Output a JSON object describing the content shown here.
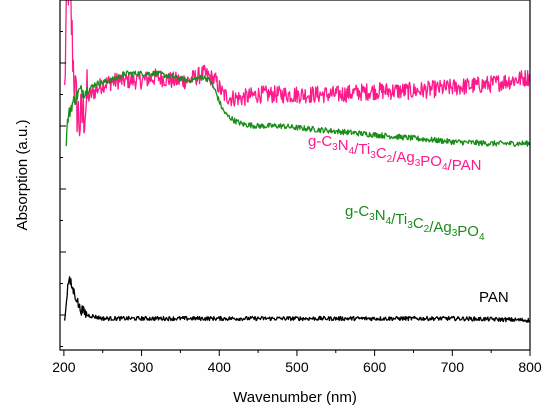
{
  "chart_data": {
    "type": "line",
    "title": "",
    "xlabel": "Wavenumber (nm)",
    "ylabel": "Absorption (a.u.)",
    "xlim": [
      195,
      800
    ],
    "ylim": [
      0,
      1
    ],
    "x_ticks": [
      200,
      300,
      400,
      500,
      600,
      700,
      800
    ],
    "y_tick_labels": "none",
    "grid": false,
    "legend": "inline labels next to curves",
    "series": [
      {
        "name": "g-C3N4/Ti3C2/Ag3PO4/PAN",
        "label_parts": [
          {
            "t": "g-C"
          },
          {
            "t": "3",
            "sub": true
          },
          {
            "t": "N"
          },
          {
            "t": "4",
            "sub": true
          },
          {
            "t": "/Ti"
          },
          {
            "t": "3",
            "sub": true
          },
          {
            "t": "C"
          },
          {
            "t": "2",
            "sub": true
          },
          {
            "t": "/Ag"
          },
          {
            "t": "3",
            "sub": true
          },
          {
            "t": "PO"
          },
          {
            "t": "4",
            "sub": true
          },
          {
            "t": "/PAN"
          }
        ],
        "color": "#ff1a8c",
        "noise": 0.025,
        "points": [
          [
            201,
            0.73
          ],
          [
            203,
            0.95
          ],
          [
            206,
            1.05
          ],
          [
            209,
            0.97
          ],
          [
            212,
            0.82
          ],
          [
            215,
            0.72
          ],
          [
            220,
            0.65
          ],
          [
            225,
            0.67
          ],
          [
            230,
            0.72
          ],
          [
            240,
            0.74
          ],
          [
            250,
            0.76
          ],
          [
            270,
            0.77
          ],
          [
            300,
            0.77
          ],
          [
            320,
            0.78
          ],
          [
            340,
            0.77
          ],
          [
            360,
            0.77
          ],
          [
            380,
            0.79
          ],
          [
            395,
            0.77
          ],
          [
            405,
            0.73
          ],
          [
            415,
            0.72
          ],
          [
            430,
            0.72
          ],
          [
            450,
            0.73
          ],
          [
            500,
            0.73
          ],
          [
            550,
            0.73
          ],
          [
            600,
            0.74
          ],
          [
            650,
            0.74
          ],
          [
            700,
            0.75
          ],
          [
            750,
            0.76
          ],
          [
            800,
            0.78
          ]
        ]
      },
      {
        "name": "g-C3N4/Ti3C2/Ag3PO4",
        "label_parts": [
          {
            "t": "g-C"
          },
          {
            "t": "3",
            "sub": true
          },
          {
            "t": "N"
          },
          {
            "t": "4",
            "sub": true
          },
          {
            "t": "/Ti"
          },
          {
            "t": "3",
            "sub": true
          },
          {
            "t": "C"
          },
          {
            "t": "2",
            "sub": true
          },
          {
            "t": "/Ag"
          },
          {
            "t": "3",
            "sub": true
          },
          {
            "t": "PO"
          },
          {
            "t": "4",
            "sub": true
          }
        ],
        "color": "#1a8c1a",
        "noise": 0.008,
        "points": [
          [
            203,
            0.6
          ],
          [
            205,
            0.66
          ],
          [
            210,
            0.7
          ],
          [
            215,
            0.72
          ],
          [
            220,
            0.74
          ],
          [
            230,
            0.74
          ],
          [
            240,
            0.76
          ],
          [
            260,
            0.77
          ],
          [
            280,
            0.79
          ],
          [
            300,
            0.79
          ],
          [
            320,
            0.79
          ],
          [
            340,
            0.78
          ],
          [
            360,
            0.77
          ],
          [
            380,
            0.78
          ],
          [
            388,
            0.77
          ],
          [
            395,
            0.74
          ],
          [
            400,
            0.71
          ],
          [
            405,
            0.685
          ],
          [
            410,
            0.67
          ],
          [
            420,
            0.655
          ],
          [
            430,
            0.645
          ],
          [
            450,
            0.64
          ],
          [
            480,
            0.64
          ],
          [
            500,
            0.635
          ],
          [
            550,
            0.625
          ],
          [
            600,
            0.615
          ],
          [
            650,
            0.605
          ],
          [
            700,
            0.595
          ],
          [
            750,
            0.59
          ],
          [
            800,
            0.59
          ]
        ]
      },
      {
        "name": "PAN",
        "label_parts": [
          {
            "t": "PAN"
          }
        ],
        "color": "#000000",
        "noise": 0.006,
        "points": [
          [
            201,
            0.08
          ],
          [
            203,
            0.14
          ],
          [
            206,
            0.2
          ],
          [
            209,
            0.19
          ],
          [
            212,
            0.17
          ],
          [
            216,
            0.15
          ],
          [
            220,
            0.12
          ],
          [
            230,
            0.1
          ],
          [
            250,
            0.09
          ],
          [
            300,
            0.09
          ],
          [
            350,
            0.09
          ],
          [
            400,
            0.09
          ],
          [
            450,
            0.09
          ],
          [
            500,
            0.09
          ],
          [
            550,
            0.09
          ],
          [
            600,
            0.09
          ],
          [
            650,
            0.09
          ],
          [
            700,
            0.09
          ],
          [
            750,
            0.088
          ],
          [
            800,
            0.085
          ]
        ]
      }
    ]
  }
}
